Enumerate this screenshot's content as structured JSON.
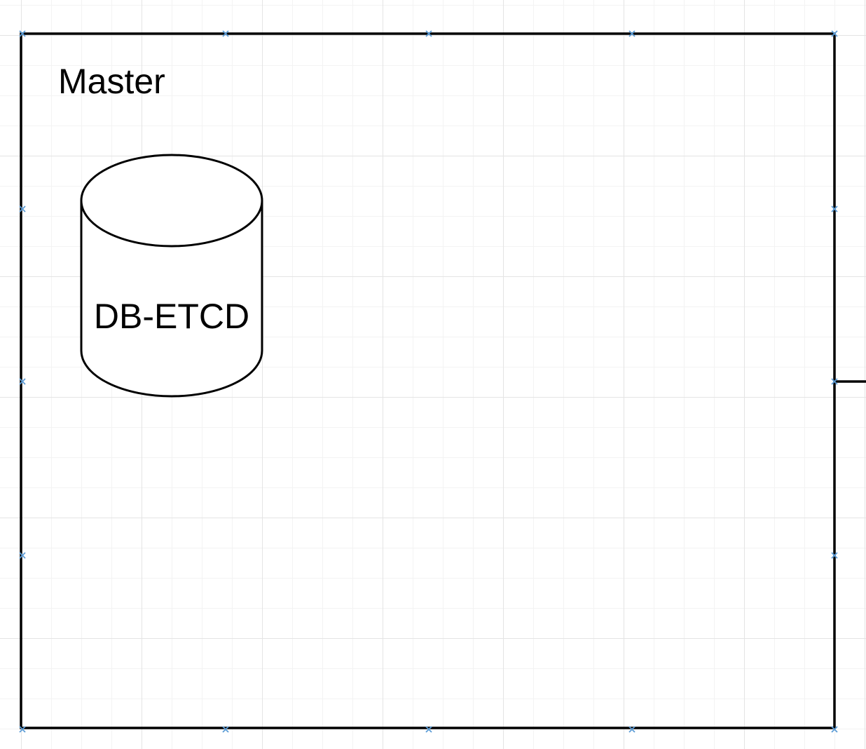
{
  "colors": {
    "stroke": "#000000",
    "fill": "#ffffff",
    "connection_point": "#5b9bd5",
    "grid_major": "#e4e4e4",
    "grid_minor": "#f3f3f3"
  },
  "container": {
    "title": "Master"
  },
  "database": {
    "shape": "cylinder",
    "label": "DB-ETCD"
  },
  "icons": {
    "connection_point": "x-mark-icon"
  }
}
